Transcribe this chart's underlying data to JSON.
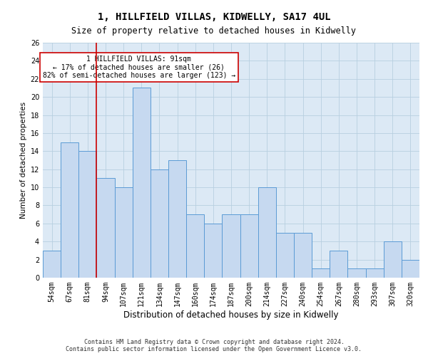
{
  "title": "1, HILLFIELD VILLAS, KIDWELLY, SA17 4UL",
  "subtitle": "Size of property relative to detached houses in Kidwelly",
  "xlabel": "Distribution of detached houses by size in Kidwelly",
  "ylabel": "Number of detached properties",
  "categories": [
    "54sqm",
    "67sqm",
    "81sqm",
    "94sqm",
    "107sqm",
    "121sqm",
    "134sqm",
    "147sqm",
    "160sqm",
    "174sqm",
    "187sqm",
    "200sqm",
    "214sqm",
    "227sqm",
    "240sqm",
    "254sqm",
    "267sqm",
    "280sqm",
    "293sqm",
    "307sqm",
    "320sqm"
  ],
  "values": [
    3,
    15,
    14,
    11,
    10,
    21,
    12,
    13,
    7,
    6,
    7,
    7,
    10,
    5,
    5,
    1,
    3,
    1,
    1,
    4,
    2
  ],
  "bar_color": "#c6d9f0",
  "bar_edge_color": "#5b9bd5",
  "vline_color": "#cc0000",
  "vline_x": 2.5,
  "annotation_text": "1 HILLFIELD VILLAS: 91sqm\n← 17% of detached houses are smaller (26)\n82% of semi-detached houses are larger (123) →",
  "annotation_box_color": "white",
  "annotation_box_edge_color": "#cc0000",
  "ylim": [
    0,
    26
  ],
  "yticks": [
    0,
    2,
    4,
    6,
    8,
    10,
    12,
    14,
    16,
    18,
    20,
    22,
    24,
    26
  ],
  "footer": "Contains HM Land Registry data © Crown copyright and database right 2024.\nContains public sector information licensed under the Open Government Licence v3.0.",
  "grid_color": "#b8cfe0",
  "background_color": "#dce9f5",
  "title_fontsize": 10,
  "subtitle_fontsize": 8.5,
  "xlabel_fontsize": 8.5,
  "ylabel_fontsize": 7.5,
  "tick_fontsize": 7,
  "annotation_fontsize": 7,
  "footer_fontsize": 6
}
